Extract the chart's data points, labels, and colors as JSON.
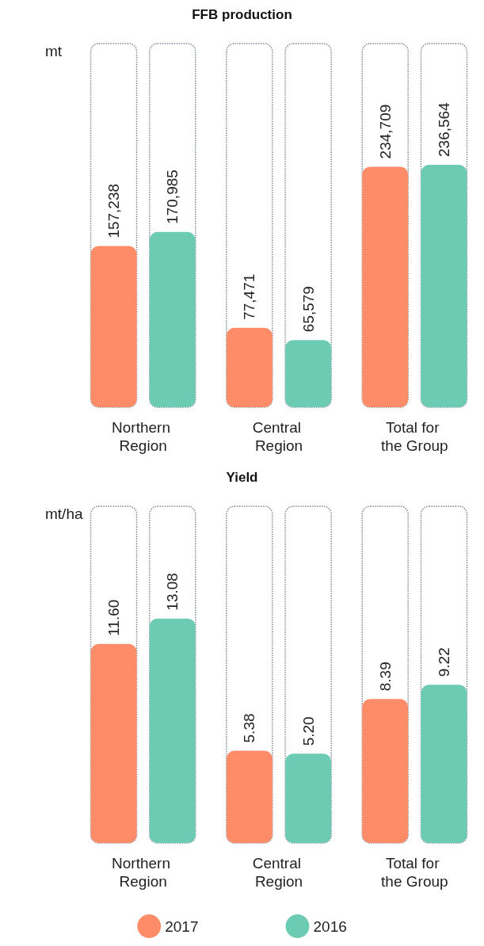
{
  "chart_data": [
    {
      "type": "bar",
      "title": "FFB production",
      "ylabel": "mt",
      "categories": [
        "Northern Region",
        "Central Region",
        "Total for the Group"
      ],
      "series": [
        {
          "color": "#ff8c69",
          "values": [
            157238,
            77471,
            234709
          ],
          "value_labels": [
            "157,238",
            "77,471",
            "234,709"
          ]
        },
        {
          "color": "#6ccbb3",
          "values": [
            170985,
            65579,
            236564
          ],
          "value_labels": [
            "170,985",
            "65,579",
            "236,564"
          ]
        }
      ],
      "legend": false
    },
    {
      "type": "bar",
      "title": "Yield",
      "ylabel": "mt/ha",
      "categories": [
        "Northern Region",
        "Central Region",
        "Total for the Group"
      ],
      "series": [
        {
          "name": "2017",
          "color": "#ff8c69",
          "values": [
            11.6,
            5.38,
            8.39
          ],
          "value_labels": [
            "11.60",
            "5.38",
            "8.39"
          ]
        },
        {
          "name": "2016",
          "color": "#6ccbb3",
          "values": [
            13.08,
            5.2,
            9.22
          ],
          "value_labels": [
            "13.08",
            "5.20",
            "9.22"
          ]
        }
      ],
      "legend": "bottom"
    }
  ]
}
